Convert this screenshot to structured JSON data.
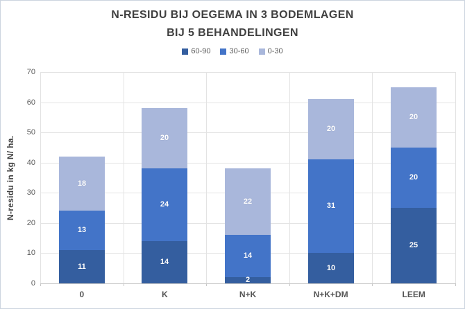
{
  "chart_data": {
    "type": "bar",
    "stacked": true,
    "title_lines": [
      "N-RESIDU BIJ OEGEMA IN 3 BODEMLAGEN",
      "BIJ 5 BEHANDELINGEN"
    ],
    "categories": [
      "0",
      "K",
      "N+K",
      "N+K+DM",
      "LEEM"
    ],
    "series": [
      {
        "name": "60-90",
        "color": "#345E9F",
        "values": [
          11,
          14,
          2,
          10,
          25
        ]
      },
      {
        "name": "30-60",
        "color": "#4374C8",
        "values": [
          13,
          24,
          14,
          31,
          20
        ]
      },
      {
        "name": "0-30",
        "color": "#A9B7DB",
        "values": [
          18,
          20,
          22,
          20,
          20
        ]
      }
    ],
    "totals": [
      42,
      58,
      38,
      61,
      65
    ],
    "xlabel": "",
    "ylabel": "N-residu in kg N/ ha.",
    "ylim": [
      0,
      70
    ],
    "ytick_step": 10,
    "yticks": [
      "0",
      "10",
      "20",
      "30",
      "40",
      "50",
      "60",
      "70"
    ],
    "grid": "horizontal and vertical category gridlines",
    "legend_position": "top-center",
    "colors": {
      "title_text": "#404040",
      "tick_text": "#595959",
      "category_text": "#555555",
      "gridline": "#E3E3E3",
      "axis_line": "#C8C8C8",
      "data_label_text": "#FFFFFF",
      "background": "#FFFFFF",
      "border": "#CCD4DF"
    }
  }
}
